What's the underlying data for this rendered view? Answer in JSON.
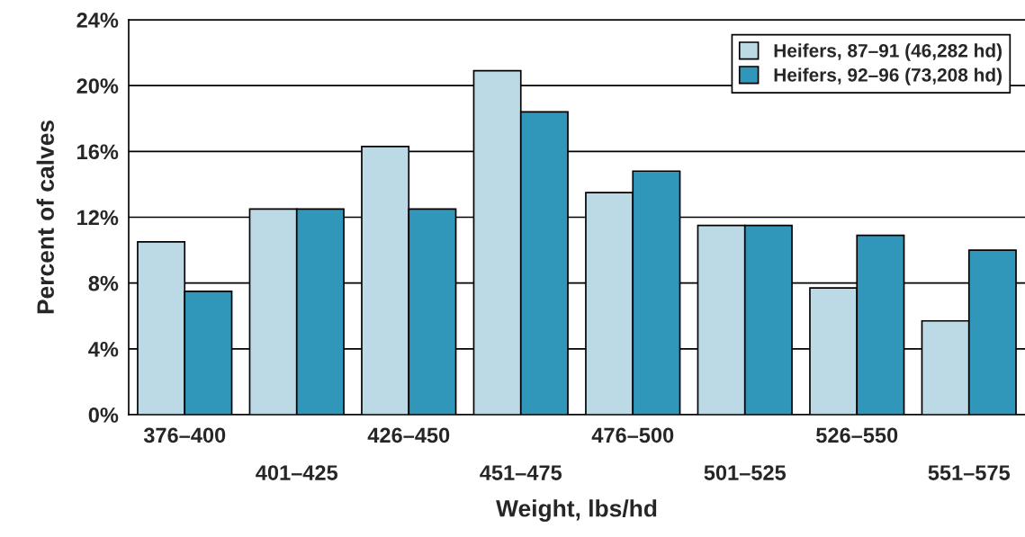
{
  "chart_data": {
    "type": "bar",
    "xlabel": "Weight, lbs/hd",
    "ylabel": "Percent of calves",
    "categories": [
      "376–400",
      "401–425",
      "426–450",
      "451–475",
      "476–500",
      "501–525",
      "526–550",
      "551–575"
    ],
    "series": [
      {
        "name": "Heifers, 87–91 (46,282 hd)",
        "color": "#bcd9e6",
        "values": [
          10.5,
          12.5,
          16.3,
          20.9,
          13.5,
          11.5,
          7.7,
          5.7
        ]
      },
      {
        "name": "Heifers, 92–96 (73,208 hd)",
        "color": "#3097bb",
        "values": [
          7.5,
          12.5,
          12.5,
          18.4,
          14.8,
          11.5,
          10.9,
          10.0
        ]
      }
    ],
    "ylim": [
      0,
      24
    ],
    "yticks": [
      {
        "value": 0,
        "label": "0%"
      },
      {
        "value": 4,
        "label": "4%"
      },
      {
        "value": 8,
        "label": "8%"
      },
      {
        "value": 12,
        "label": "12%"
      },
      {
        "value": 16,
        "label": "16%"
      },
      {
        "value": 20,
        "label": "20%"
      },
      {
        "value": 24,
        "label": "24%"
      }
    ],
    "grid": "y",
    "legend": "top right"
  }
}
